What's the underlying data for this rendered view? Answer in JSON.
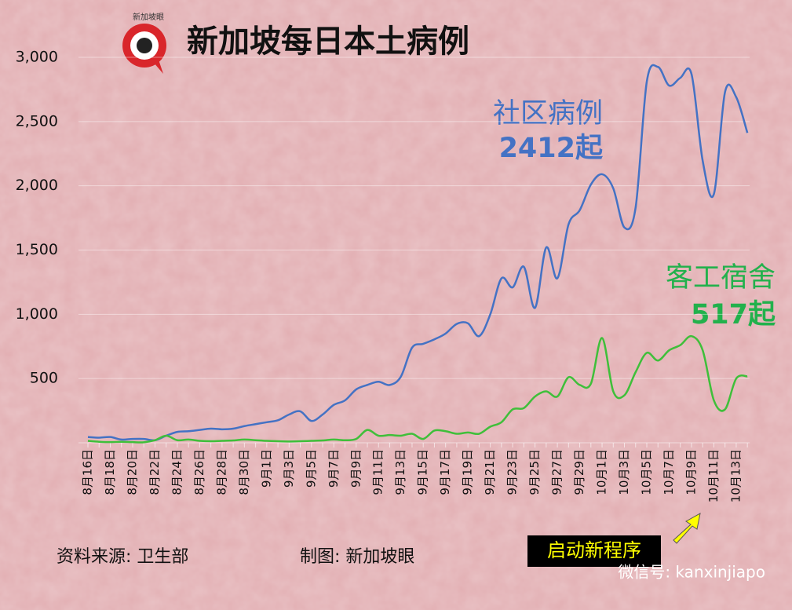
{
  "chart_data": {
    "type": "line",
    "title": "新加坡每日本土病例",
    "logo_text": "新加坡眼",
    "categories": [
      "8月16日",
      null,
      "8月18日",
      null,
      "8月20日",
      null,
      "8月22日",
      null,
      "8月24日",
      null,
      "8月26日",
      null,
      "8月28日",
      null,
      "8月30日",
      null,
      "9月1日",
      null,
      "9月3日",
      null,
      "9月5日",
      null,
      "9月7日",
      null,
      "9月9日",
      null,
      "9月11日",
      null,
      "9月13日",
      null,
      "9月15日",
      null,
      "9月17日",
      null,
      "9月19日",
      null,
      "9月21日",
      null,
      "9月23日",
      null,
      "9月25日",
      null,
      "9月27日",
      null,
      "9月29日",
      null,
      "10月1日",
      null,
      "10月3日",
      null,
      "10月5日",
      null,
      "10月7日",
      null,
      "10月9日",
      null,
      "10月11日",
      null,
      "10月13日",
      null
    ],
    "series": [
      {
        "name": "社区病例",
        "color": "#4472c4",
        "values": [
          45,
          40,
          45,
          25,
          30,
          30,
          20,
          55,
          85,
          90,
          100,
          110,
          105,
          110,
          130,
          145,
          160,
          175,
          220,
          245,
          170,
          220,
          295,
          330,
          415,
          450,
          475,
          450,
          515,
          740,
          770,
          805,
          850,
          925,
          930,
          830,
          1000,
          1280,
          1210,
          1370,
          1050,
          1520,
          1280,
          1700,
          1810,
          2010,
          2090,
          1980,
          1675,
          1830,
          2810,
          2925,
          2780,
          2840,
          2870,
          2195,
          1935,
          2730,
          2690,
          2412
        ]
      },
      {
        "name": "客工宿舍",
        "color": "#3fbf3a",
        "values": [
          15,
          8,
          5,
          8,
          5,
          4,
          20,
          55,
          20,
          25,
          15,
          12,
          15,
          18,
          25,
          20,
          15,
          12,
          10,
          12,
          15,
          18,
          25,
          20,
          30,
          100,
          55,
          60,
          55,
          70,
          30,
          95,
          90,
          70,
          80,
          70,
          125,
          160,
          260,
          270,
          360,
          400,
          360,
          510,
          450,
          460,
          815,
          400,
          370,
          550,
          700,
          640,
          720,
          760,
          830,
          720,
          330,
          260,
          500,
          517
        ]
      }
    ],
    "annotations": [
      {
        "text": "社区病例",
        "color": "#4472c4"
      },
      {
        "text": "2412起",
        "color": "#4472c4"
      },
      {
        "text": "客工宿舍",
        "color": "#22b14c"
      },
      {
        "text": "517起",
        "color": "#22b14c"
      }
    ],
    "callout": "启动新程序",
    "source": "资料来源:  卫生部",
    "credit": "制图:  新加坡眼",
    "watermark": "微信号: kanxinjiapo",
    "ylim": [
      0,
      3000
    ],
    "yticks": [
      500,
      {
        "value": 1000,
        "label": "1,000"
      },
      {
        "value": 1500,
        "label": "1,500"
      },
      {
        "value": 2000,
        "label": "2,000"
      },
      {
        "value": 2500,
        "label": "2,500"
      },
      {
        "value": 3000,
        "label": "3,000"
      }
    ],
    "grid": true
  }
}
